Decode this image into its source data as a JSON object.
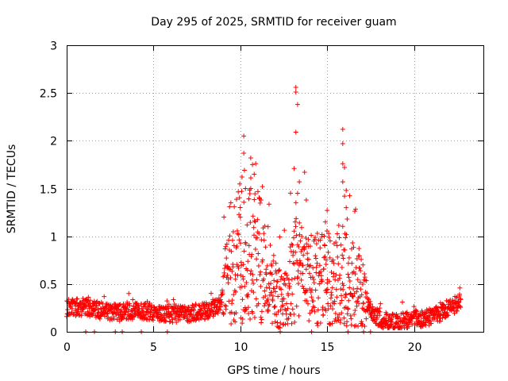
{
  "chart_data": {
    "type": "scatter",
    "title": "Day 295 of 2025, SRMTID for receiver guam",
    "xlabel": "GPS time / hours",
    "ylabel": "SRMTID / TECUs",
    "xlim": [
      0,
      24
    ],
    "ylim": [
      0,
      3
    ],
    "xticks": [
      0,
      5,
      10,
      15,
      20
    ],
    "xtick_labels": [
      "0",
      "5",
      "10",
      "15",
      "20"
    ],
    "yticks": [
      0,
      0.5,
      1,
      1.5,
      2,
      2.5,
      3
    ],
    "ytick_labels": [
      "0",
      "0.5",
      "1",
      "1.5",
      "2",
      "2.5",
      "3"
    ],
    "grid": true,
    "marker": "+",
    "series": [
      {
        "name": "SRMTID",
        "color": "#ff0000",
        "data_range_hours": [
          0,
          22.7
        ],
        "profile": [
          {
            "x": 0,
            "y": 0.25
          },
          {
            "x": 1,
            "y": 0.26
          },
          {
            "x": 2,
            "y": 0.22
          },
          {
            "x": 3,
            "y": 0.2
          },
          {
            "x": 4,
            "y": 0.22
          },
          {
            "x": 5,
            "y": 0.21
          },
          {
            "x": 6,
            "y": 0.18
          },
          {
            "x": 7,
            "y": 0.19
          },
          {
            "x": 8,
            "y": 0.22
          },
          {
            "x": 8.8,
            "y": 0.28
          },
          {
            "x": 9.3,
            "y": 0.55
          },
          {
            "x": 10,
            "y": 0.85
          },
          {
            "x": 11,
            "y": 0.8
          },
          {
            "x": 11.8,
            "y": 0.45
          },
          {
            "x": 12.5,
            "y": 0.3
          },
          {
            "x": 13.3,
            "y": 0.7
          },
          {
            "x": 14,
            "y": 0.55
          },
          {
            "x": 15,
            "y": 0.55
          },
          {
            "x": 16,
            "y": 0.6
          },
          {
            "x": 17,
            "y": 0.4
          },
          {
            "x": 17.6,
            "y": 0.2
          },
          {
            "x": 18.3,
            "y": 0.1
          },
          {
            "x": 19,
            "y": 0.1
          },
          {
            "x": 20,
            "y": 0.13
          },
          {
            "x": 21,
            "y": 0.16
          },
          {
            "x": 21.8,
            "y": 0.22
          },
          {
            "x": 22.7,
            "y": 0.32
          }
        ],
        "peaks": [
          {
            "x": 10.2,
            "y": 2.05
          },
          {
            "x": 10.2,
            "y": 1.87
          },
          {
            "x": 10.1,
            "y": 1.62
          },
          {
            "x": 10.6,
            "y": 1.82
          },
          {
            "x": 10.7,
            "y": 1.75
          },
          {
            "x": 10.8,
            "y": 1.65
          },
          {
            "x": 10.6,
            "y": 1.5
          },
          {
            "x": 10.3,
            "y": 1.5
          },
          {
            "x": 11.2,
            "y": 1.38
          },
          {
            "x": 13.2,
            "y": 2.56
          },
          {
            "x": 13.2,
            "y": 2.51
          },
          {
            "x": 13.3,
            "y": 2.38
          },
          {
            "x": 13.2,
            "y": 2.09
          },
          {
            "x": 13.1,
            "y": 1.71
          },
          {
            "x": 13.4,
            "y": 1.57
          },
          {
            "x": 13.7,
            "y": 1.67
          },
          {
            "x": 13.8,
            "y": 1.38
          },
          {
            "x": 13.3,
            "y": 1.45
          },
          {
            "x": 15.9,
            "y": 2.12
          },
          {
            "x": 15.9,
            "y": 1.97
          },
          {
            "x": 15.9,
            "y": 1.76
          },
          {
            "x": 16.0,
            "y": 1.72
          },
          {
            "x": 15.9,
            "y": 1.57
          },
          {
            "x": 16.1,
            "y": 1.48
          },
          {
            "x": 16.0,
            "y": 1.42
          },
          {
            "x": 15.0,
            "y": 1.27
          },
          {
            "x": 14.9,
            "y": 1.15
          },
          {
            "x": 16.1,
            "y": 1.3
          },
          {
            "x": 10.0,
            "y": 1.2
          },
          {
            "x": 11.6,
            "y": 1.1
          }
        ],
        "zeros": [
          1.1,
          1.6,
          2.8,
          3.2,
          4.3,
          5.8,
          12.3,
          14.1,
          16.2,
          17.1,
          17.5
        ]
      }
    ]
  }
}
